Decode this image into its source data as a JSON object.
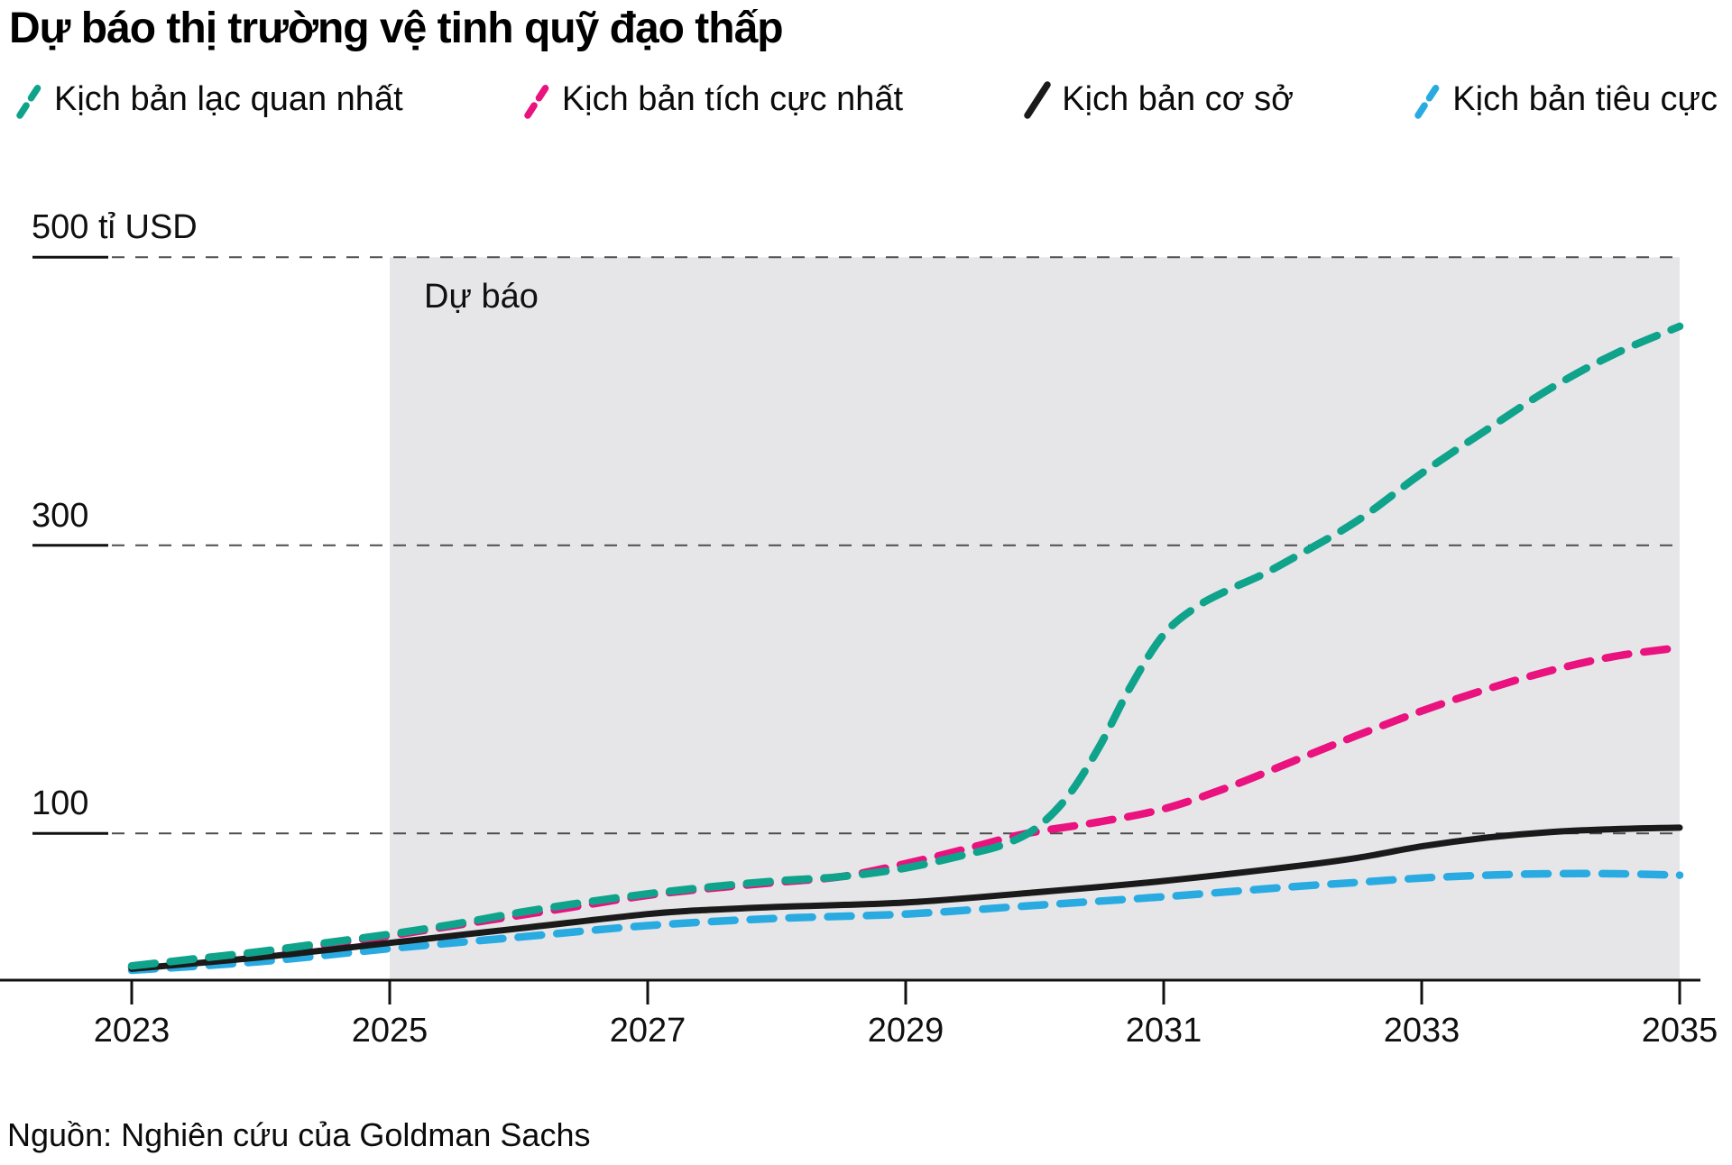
{
  "title": "Dự báo thị trường vệ tinh quỹ đạo thấp",
  "forecast_label": "Dự báo",
  "source": "Nguồn: Nghiên cứu của Goldman Sachs",
  "colors": {
    "optimistic": "#0FA38C",
    "positive": "#E9127E",
    "base": "#1A1A1A",
    "negative": "#29ABE2",
    "forecast_band": "#E6E6E8",
    "gridline": "#4D4D4D",
    "axis": "#111111"
  },
  "legend": [
    {
      "label": "Kịch bản lạc quan nhất",
      "color_key": "optimistic",
      "dashed": true
    },
    {
      "label": "Kịch bản tích cực nhất",
      "color_key": "positive",
      "dashed": true
    },
    {
      "label": "Kịch bản cơ sở",
      "color_key": "base",
      "dashed": false
    },
    {
      "label": "Kịch bản tiêu cực",
      "color_key": "negative",
      "dashed": true
    }
  ],
  "y_axis": {
    "labels": [
      {
        "text": "500 tỉ USD",
        "value": 500
      },
      {
        "text": "300",
        "value": 300
      },
      {
        "text": "100",
        "value": 100
      }
    ]
  },
  "x_axis": {
    "labels": [
      "2023",
      "2025",
      "2027",
      "2029",
      "2031",
      "2033",
      "2035"
    ]
  },
  "chart_data": {
    "type": "line",
    "title": "Dự báo thị trường vệ tinh quỹ đạo thấp",
    "ylabel": "tỉ USD",
    "ylim": [
      0,
      500
    ],
    "xlim": [
      2023,
      2035
    ],
    "gridlines_y": [
      100,
      300,
      500
    ],
    "grid": "dashed-horizontal",
    "legend_position": "top",
    "forecast_region": {
      "from": 2025,
      "to": 2035,
      "label": "Dự báo"
    },
    "series": [
      {
        "name": "Kịch bản lạc quan nhất",
        "color_key": "optimistic",
        "style": "dashed",
        "points": [
          [
            2023,
            8
          ],
          [
            2023.5,
            13
          ],
          [
            2024,
            18
          ],
          [
            2024.5,
            24
          ],
          [
            2025,
            30
          ],
          [
            2025.5,
            37
          ],
          [
            2026,
            45
          ],
          [
            2026.5,
            52
          ],
          [
            2027,
            58
          ],
          [
            2027.5,
            63
          ],
          [
            2028,
            67
          ],
          [
            2028.5,
            70
          ],
          [
            2029,
            76
          ],
          [
            2029.5,
            86
          ],
          [
            2029.75,
            92
          ],
          [
            2030,
            103
          ],
          [
            2030.25,
            125
          ],
          [
            2030.5,
            160
          ],
          [
            2030.75,
            203
          ],
          [
            2031,
            238
          ],
          [
            2031.25,
            257
          ],
          [
            2031.5,
            269
          ],
          [
            2031.75,
            279
          ],
          [
            2032,
            291
          ],
          [
            2032.5,
            317
          ],
          [
            2033,
            350
          ],
          [
            2033.5,
            380
          ],
          [
            2034,
            409
          ],
          [
            2034.5,
            433
          ],
          [
            2035,
            452
          ]
        ]
      },
      {
        "name": "Kịch bản tích cực nhất",
        "color_key": "positive",
        "style": "dashed",
        "points": [
          [
            2023,
            7
          ],
          [
            2023.5,
            12
          ],
          [
            2024,
            17
          ],
          [
            2024.5,
            23
          ],
          [
            2025,
            29
          ],
          [
            2025.5,
            36
          ],
          [
            2026,
            43
          ],
          [
            2026.5,
            50
          ],
          [
            2027,
            57
          ],
          [
            2027.5,
            62
          ],
          [
            2028,
            66
          ],
          [
            2028.5,
            70
          ],
          [
            2029,
            79
          ],
          [
            2029.5,
            90
          ],
          [
            2029.75,
            96
          ],
          [
            2030,
            101
          ],
          [
            2030.5,
            108
          ],
          [
            2031,
            117
          ],
          [
            2031.5,
            132
          ],
          [
            2032,
            150
          ],
          [
            2032.5,
            168
          ],
          [
            2033,
            185
          ],
          [
            2033.5,
            200
          ],
          [
            2034,
            213
          ],
          [
            2034.5,
            223
          ],
          [
            2035,
            229
          ]
        ]
      },
      {
        "name": "Kịch bản cơ sở",
        "color_key": "base",
        "style": "solid",
        "points": [
          [
            2023,
            6
          ],
          [
            2024,
            14
          ],
          [
            2025,
            24
          ],
          [
            2026,
            34
          ],
          [
            2027,
            44
          ],
          [
            2027.5,
            47
          ],
          [
            2028,
            49
          ],
          [
            2029,
            52
          ],
          [
            2030,
            59
          ],
          [
            2031,
            67
          ],
          [
            2032,
            77
          ],
          [
            2032.5,
            83
          ],
          [
            2033,
            91
          ],
          [
            2033.5,
            97
          ],
          [
            2034,
            101
          ],
          [
            2034.5,
            103
          ],
          [
            2035,
            104
          ]
        ]
      },
      {
        "name": "Kịch bản tiêu cực",
        "color_key": "negative",
        "style": "dashed",
        "points": [
          [
            2023,
            5
          ],
          [
            2024,
            11
          ],
          [
            2025,
            20
          ],
          [
            2026,
            28
          ],
          [
            2027,
            36
          ],
          [
            2028,
            41
          ],
          [
            2029,
            44
          ],
          [
            2030,
            50
          ],
          [
            2031,
            56
          ],
          [
            2032,
            63
          ],
          [
            2032.5,
            66
          ],
          [
            2033,
            69
          ],
          [
            2033.5,
            71
          ],
          [
            2034,
            72
          ],
          [
            2034.5,
            72
          ],
          [
            2035,
            71
          ]
        ]
      }
    ]
  }
}
